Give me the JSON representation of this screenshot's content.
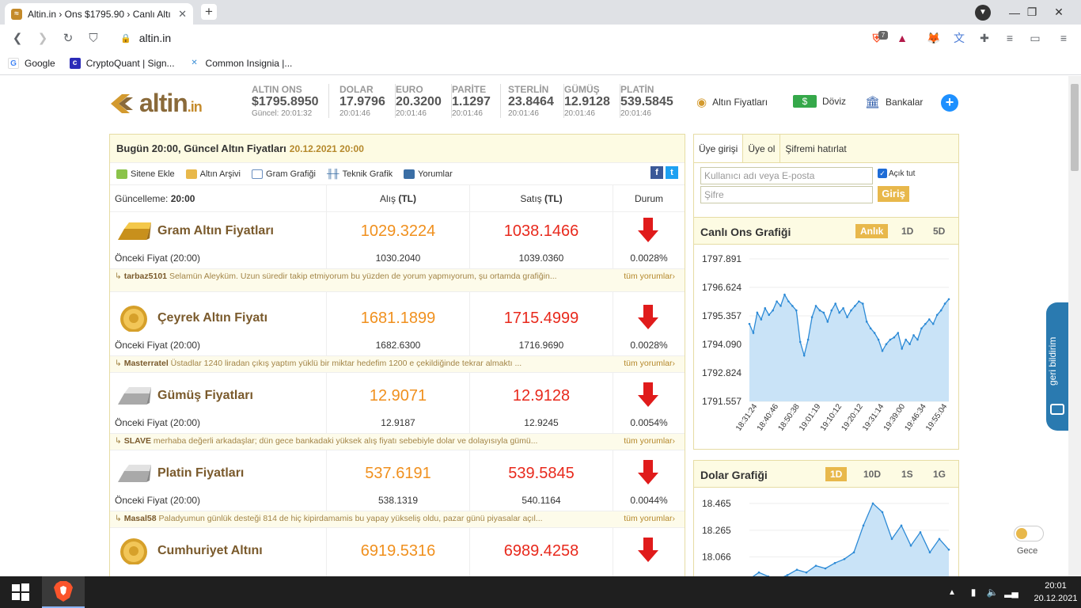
{
  "browser": {
    "tab_title": "Altin.in › Ons $1795.90 › Canlı Altı",
    "tab_favicon": "altin-favicon",
    "url": "altin.in",
    "bookmarks": [
      {
        "label": "Google",
        "icon": "google-icon",
        "color": "#4285f4"
      },
      {
        "label": "CryptoQuant | Sign...",
        "icon": "cryptoquant-icon",
        "color": "#2b2bb8"
      },
      {
        "label": "Common Insignia |...",
        "icon": "insignia-icon",
        "color": "#3b8fd6"
      }
    ],
    "brave_badge": "7"
  },
  "logo": {
    "main": "altin",
    "tld": ".in"
  },
  "tickers": [
    {
      "label": "ALTIN ONS",
      "value": "$1795.8950",
      "time": "Güncel: 20:01:32"
    },
    {
      "label": "DOLAR",
      "value": "17.9796",
      "time": "20:01:46"
    },
    {
      "label": "EURO",
      "value": "20.3200",
      "time": "20:01:46"
    },
    {
      "label": "PARİTE",
      "value": "1.1297",
      "time": "20:01:46"
    },
    {
      "label": "STERLİN",
      "value": "23.8464",
      "time": "20:01:46"
    },
    {
      "label": "GÜMÜŞ",
      "value": "12.9128",
      "time": "20:01:46"
    },
    {
      "label": "PLATİN",
      "value": "539.5845",
      "time": "20:01:46"
    }
  ],
  "topnav": [
    {
      "label": "Altın Fiyatları",
      "icon": "coins-icon"
    },
    {
      "label": "Döviz",
      "icon": "banknote-icon"
    },
    {
      "label": "Bankalar",
      "icon": "bank-icon"
    }
  ],
  "main": {
    "heading": "Bugün 20:00, Güncel Altın Fiyatları",
    "heading_date": "20.12.2021 20:00",
    "tools": [
      "Sitene Ekle",
      "Altın Arşivi",
      "Gram Grafiği",
      "Teknik Grafik",
      "Yorumlar"
    ],
    "col_update_label": "Güncelleme:",
    "col_update_value": "20:00",
    "col_buy": "Alış",
    "col_sell": "Satış",
    "col_unit": "(TL)",
    "col_status": "Durum",
    "prev_label": "Önceki Fiyat (20:00)",
    "all_comments": "tüm yorumlar›",
    "rows": [
      {
        "name": "Gram Altın Fiyatları",
        "buy": "1029.3224",
        "sell": "1038.1466",
        "prev_buy": "1030.2040",
        "prev_sell": "1039.0360",
        "pct": "0.0028%",
        "user": "tarbaz5101",
        "comment": "Selamün Aleyküm. Uzun süredir takip etmiyorum bu yüzden de yorum yapmıyorum, şu ortamda grafiğin...",
        "icon": "gold-bar-icon"
      },
      {
        "name": "Çeyrek Altın Fiyatı",
        "buy": "1681.1899",
        "sell": "1715.4999",
        "prev_buy": "1682.6300",
        "prev_sell": "1716.9690",
        "pct": "0.0028%",
        "user": "Masterratel",
        "comment": "Üstadlar 1240 liradan çıkış yaptım yüklü bir miktar hedefim 1200 e çekildiğinde tekrar almaktı ...",
        "icon": "gold-coin-icon"
      },
      {
        "name": "Gümüş Fiyatları",
        "buy": "12.9071",
        "sell": "12.9128",
        "prev_buy": "12.9187",
        "prev_sell": "12.9245",
        "pct": "0.0054%",
        "user": "SLAVE",
        "comment": "merhaba değerli arkadaşlar; dün gece bankadaki yüksek alış fiyatı sebebiyle dolar ve dolayısıyla gümü...",
        "icon": "silver-bar-icon"
      },
      {
        "name": "Platin Fiyatları",
        "buy": "537.6191",
        "sell": "539.5845",
        "prev_buy": "538.1319",
        "prev_sell": "540.1164",
        "pct": "0.0044%",
        "user": "Masal58",
        "comment": "Paladyumun günlük desteği 814 de hiç kipirdamamis bu yapay yükseliş oldu, pazar günü piyasalar açıl...",
        "icon": "platinum-bar-icon"
      },
      {
        "name": "Cumhuriyet Altını",
        "buy": "6919.5316",
        "sell": "6989.4258",
        "icon": "gold-coin-icon"
      }
    ]
  },
  "login": {
    "tabs": [
      "Üye girişi",
      "Üye ol",
      "Şifremi hatırlat"
    ],
    "user_placeholder": "Kullanıcı adı veya E-posta",
    "pass_placeholder": "Şifre",
    "remember": "Açık tut",
    "submit": "Giriş"
  },
  "ons_chart": {
    "title": "Canlı Ons Grafiği",
    "ranges": [
      "Anlık",
      "1D",
      "5D"
    ],
    "active": "Anlık"
  },
  "dolar_chart": {
    "title": "Dolar Grafiği",
    "ranges": [
      "1D",
      "10D",
      "1S",
      "1G"
    ],
    "active": "1D"
  },
  "chart_data": [
    {
      "type": "area",
      "title": "Canlı Ons Grafiği",
      "x_ticks": [
        "18:31:24",
        "18:40:46",
        "18:50:38",
        "19:01:19",
        "19:10:12",
        "19:20:12",
        "19:31:14",
        "19:39:00",
        "19:46:34",
        "19:55:04"
      ],
      "y_ticks": [
        "1797.891",
        "1796.624",
        "1795.357",
        "1794.090",
        "1792.824",
        "1791.557"
      ],
      "ylim": [
        1791.557,
        1797.891
      ],
      "values": [
        1795.0,
        1794.6,
        1795.5,
        1795.2,
        1795.7,
        1795.4,
        1795.6,
        1796.0,
        1795.8,
        1796.3,
        1796.0,
        1795.8,
        1795.6,
        1794.2,
        1793.6,
        1794.3,
        1795.3,
        1795.8,
        1795.6,
        1795.5,
        1795.1,
        1795.6,
        1795.9,
        1795.5,
        1795.7,
        1795.3,
        1795.6,
        1795.8,
        1796.0,
        1795.9,
        1795.1,
        1794.8,
        1794.6,
        1794.3,
        1793.8,
        1794.1,
        1794.3,
        1794.4,
        1794.6,
        1793.9,
        1794.3,
        1794.1,
        1794.5,
        1794.3,
        1794.8,
        1795.0,
        1795.2,
        1795.0,
        1795.4,
        1795.6,
        1795.9,
        1796.1
      ]
    },
    {
      "type": "area",
      "title": "Dolar Grafiği",
      "y_ticks": [
        "18.465",
        "18.265",
        "18.066"
      ],
      "ylim": [
        17.85,
        18.5
      ],
      "values": [
        17.9,
        17.95,
        17.92,
        17.9,
        17.93,
        17.97,
        17.95,
        18.0,
        17.98,
        18.02,
        18.05,
        18.1,
        18.3,
        18.465,
        18.4,
        18.2,
        18.3,
        18.15,
        18.25,
        18.1,
        18.2,
        18.12
      ]
    }
  ],
  "feedback": {
    "label": "geri bildirim"
  },
  "night_mode": {
    "label": "Gece"
  },
  "taskbar": {
    "time": "20:01",
    "date": "20.12.2021"
  }
}
